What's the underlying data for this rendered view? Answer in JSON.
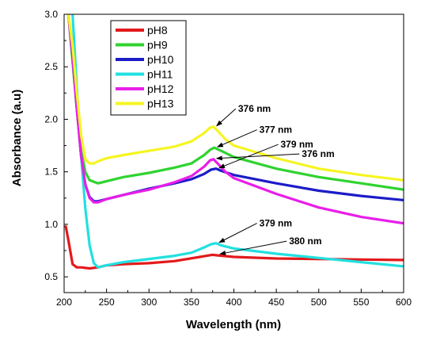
{
  "chart_data": {
    "type": "line",
    "title": "",
    "xlabel": "Wavelength (nm)",
    "ylabel": "Absorbance (a.u)",
    "xlim": [
      200,
      600
    ],
    "ylim": [
      0.35,
      3.0
    ],
    "x_ticks": [
      200,
      250,
      300,
      350,
      400,
      450,
      500,
      550,
      600
    ],
    "y_ticks": [
      0.5,
      1.0,
      1.5,
      2.0,
      2.5,
      3.0
    ],
    "x_tick_labels": [
      "200",
      "250",
      "300",
      "350",
      "400",
      "450",
      "500",
      "550",
      "600"
    ],
    "y_tick_labels": [
      "0.5",
      "1.0",
      "1.5",
      "2.0",
      "2.5",
      "3.0"
    ],
    "grid": false,
    "legend_position": "top-left",
    "series": [
      {
        "name": "pH8",
        "color": "#e31a1c",
        "x": [
          202,
          205,
          210,
          215,
          220,
          230,
          240,
          250,
          270,
          300,
          330,
          360,
          375,
          380,
          400,
          450,
          500,
          550,
          600
        ],
        "y": [
          0.98,
          0.85,
          0.62,
          0.59,
          0.59,
          0.58,
          0.59,
          0.61,
          0.62,
          0.63,
          0.65,
          0.69,
          0.71,
          0.705,
          0.69,
          0.675,
          0.67,
          0.665,
          0.66
        ]
      },
      {
        "name": "pH9",
        "color": "#2fd32f",
        "x": [
          205,
          210,
          215,
          220,
          225,
          230,
          240,
          250,
          270,
          300,
          330,
          350,
          365,
          372,
          377,
          385,
          400,
          450,
          500,
          550,
          600
        ],
        "y": [
          3.0,
          2.55,
          2.1,
          1.7,
          1.5,
          1.42,
          1.39,
          1.41,
          1.45,
          1.49,
          1.54,
          1.58,
          1.66,
          1.71,
          1.73,
          1.7,
          1.64,
          1.53,
          1.45,
          1.39,
          1.33
        ]
      },
      {
        "name": "pH10",
        "color": "#1c1cc8",
        "x": [
          205,
          210,
          215,
          220,
          225,
          230,
          235,
          240,
          250,
          270,
          300,
          330,
          350,
          365,
          373,
          379,
          385,
          400,
          450,
          500,
          550,
          600
        ],
        "y": [
          3.0,
          2.6,
          2.1,
          1.65,
          1.38,
          1.26,
          1.22,
          1.22,
          1.24,
          1.28,
          1.34,
          1.39,
          1.43,
          1.48,
          1.52,
          1.53,
          1.51,
          1.47,
          1.39,
          1.32,
          1.27,
          1.23
        ]
      },
      {
        "name": "pH11",
        "color": "#22e0e0",
        "x": [
          210,
          215,
          220,
          225,
          230,
          235,
          240,
          250,
          270,
          300,
          330,
          350,
          365,
          373,
          379,
          385,
          400,
          450,
          500,
          550,
          600
        ],
        "y": [
          3.0,
          2.3,
          1.65,
          1.15,
          0.8,
          0.63,
          0.59,
          0.61,
          0.64,
          0.67,
          0.7,
          0.73,
          0.78,
          0.81,
          0.82,
          0.8,
          0.77,
          0.72,
          0.68,
          0.64,
          0.6
        ]
      },
      {
        "name": "pH12",
        "color": "#e81ee8",
        "x": [
          205,
          210,
          215,
          220,
          225,
          230,
          235,
          240,
          250,
          270,
          300,
          330,
          350,
          365,
          372,
          376,
          382,
          390,
          400,
          450,
          500,
          550,
          600
        ],
        "y": [
          3.0,
          2.6,
          2.1,
          1.65,
          1.38,
          1.25,
          1.21,
          1.21,
          1.24,
          1.28,
          1.33,
          1.4,
          1.46,
          1.55,
          1.61,
          1.62,
          1.57,
          1.5,
          1.44,
          1.29,
          1.16,
          1.07,
          1.01
        ]
      },
      {
        "name": "pH13",
        "color": "#f5f522",
        "x": [
          205,
          210,
          215,
          220,
          225,
          230,
          235,
          240,
          250,
          270,
          300,
          330,
          350,
          365,
          372,
          376,
          382,
          390,
          400,
          450,
          500,
          550,
          600
        ],
        "y": [
          3.0,
          2.7,
          2.25,
          1.85,
          1.62,
          1.58,
          1.58,
          1.6,
          1.63,
          1.66,
          1.7,
          1.74,
          1.79,
          1.87,
          1.92,
          1.93,
          1.88,
          1.81,
          1.75,
          1.63,
          1.53,
          1.47,
          1.42
        ]
      }
    ],
    "annotations": [
      {
        "text": "376 nm",
        "x": 376,
        "y": 1.93,
        "label_x": 405,
        "label_y": 2.07
      },
      {
        "text": "377 nm",
        "x": 377,
        "y": 1.73,
        "label_x": 430,
        "label_y": 1.87
      },
      {
        "text": "379 nm",
        "x": 379,
        "y": 1.53,
        "label_x": 455,
        "label_y": 1.73
      },
      {
        "text": "376 nm",
        "x": 376,
        "y": 1.62,
        "label_x": 480,
        "label_y": 1.64
      },
      {
        "text": "379 nm",
        "x": 379,
        "y": 0.82,
        "label_x": 430,
        "label_y": 0.98
      },
      {
        "text": "380 nm",
        "x": 380,
        "y": 0.71,
        "label_x": 465,
        "label_y": 0.81
      }
    ]
  }
}
